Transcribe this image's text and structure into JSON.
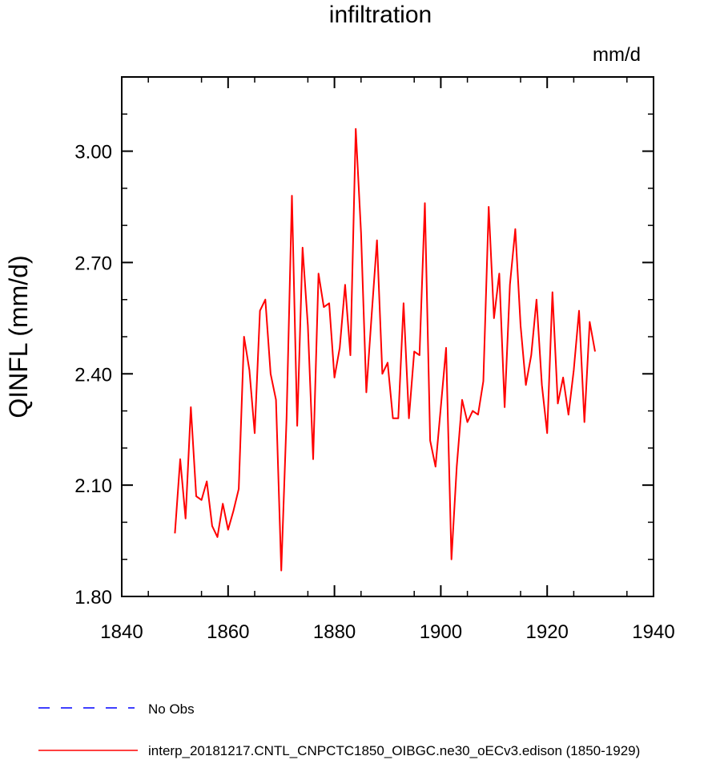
{
  "chart_data": {
    "type": "line",
    "title": "infiltration",
    "units": "mm/d",
    "ylabel": "QINFL  (mm/d)",
    "xlabel": "",
    "xlim": [
      1840,
      1940
    ],
    "ylim": [
      1.8,
      3.2
    ],
    "xticks": [
      1840,
      1860,
      1880,
      1900,
      1920,
      1940
    ],
    "xtick_labels": [
      "1840",
      "1860",
      "1880",
      "1900",
      "1920",
      "1940"
    ],
    "yticks": [
      1.8,
      2.1,
      2.4,
      2.7,
      3.0
    ],
    "ytick_labels": [
      "1.80",
      "2.10",
      "2.40",
      "2.70",
      "3.00"
    ],
    "grid": false,
    "series": [
      {
        "name": "interp_20181217.CNTL_CNPCTC1850_OIBGC.ne30_oECv3.edison (1850-1929)",
        "color": "#ff0000",
        "style": "solid",
        "x": [
          1850,
          1851,
          1852,
          1853,
          1854,
          1855,
          1856,
          1857,
          1858,
          1859,
          1860,
          1861,
          1862,
          1863,
          1864,
          1865,
          1866,
          1867,
          1868,
          1869,
          1870,
          1871,
          1872,
          1873,
          1874,
          1875,
          1876,
          1877,
          1878,
          1879,
          1880,
          1881,
          1882,
          1883,
          1884,
          1885,
          1886,
          1887,
          1888,
          1889,
          1890,
          1891,
          1892,
          1893,
          1894,
          1895,
          1896,
          1897,
          1898,
          1899,
          1900,
          1901,
          1902,
          1903,
          1904,
          1905,
          1906,
          1907,
          1908,
          1909,
          1910,
          1911,
          1912,
          1913,
          1914,
          1915,
          1916,
          1917,
          1918,
          1919,
          1920,
          1921,
          1922,
          1923,
          1924,
          1925,
          1926,
          1927,
          1928,
          1929
        ],
        "y": [
          1.97,
          2.17,
          2.01,
          2.31,
          2.07,
          2.06,
          2.11,
          1.99,
          1.96,
          2.05,
          1.98,
          2.03,
          2.09,
          2.5,
          2.41,
          2.24,
          2.57,
          2.6,
          2.4,
          2.33,
          1.87,
          2.28,
          2.88,
          2.26,
          2.74,
          2.53,
          2.17,
          2.67,
          2.58,
          2.59,
          2.39,
          2.47,
          2.64,
          2.45,
          3.06,
          2.78,
          2.35,
          2.56,
          2.76,
          2.4,
          2.43,
          2.28,
          2.28,
          2.59,
          2.28,
          2.46,
          2.45,
          2.86,
          2.22,
          2.15,
          2.31,
          2.47,
          1.9,
          2.15,
          2.33,
          2.27,
          2.3,
          2.29,
          2.38,
          2.85,
          2.55,
          2.67,
          2.31,
          2.64,
          2.79,
          2.53,
          2.37,
          2.45,
          2.6,
          2.37,
          2.24,
          2.62,
          2.32,
          2.39,
          2.29,
          2.41,
          2.57,
          2.27,
          2.54,
          2.46
        ]
      }
    ],
    "legend": {
      "placement": "bottom",
      "entries": [
        {
          "name": "No Obs",
          "color": "#0000ff",
          "style": "dashed"
        },
        {
          "name": "interp_20181217.CNTL_CNPCTC1850_OIBGC.ne30_oECv3.edison (1850-1929)",
          "color": "#ff0000",
          "style": "solid"
        }
      ]
    }
  }
}
